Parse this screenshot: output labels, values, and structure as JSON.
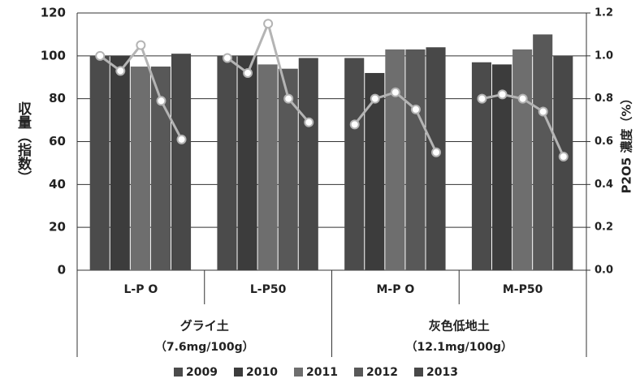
{
  "chart_data": {
    "type": "bar",
    "y_label": "収量（指数）",
    "y2_label": "P2O5 濃度（%）",
    "categories": [
      "L-P O",
      "L-P50",
      "M-P O",
      "M-P50"
    ],
    "groups": [
      {
        "label": "グライ土",
        "note": "（7.6mg/100g）"
      },
      {
        "label": "灰色低地土",
        "note": "（12.1mg/100g）"
      }
    ],
    "series": [
      {
        "name": "2009",
        "color": "#4b4b4b",
        "values": [
          100,
          100,
          99,
          97
        ]
      },
      {
        "name": "2010",
        "color": "#3c3c3c",
        "values": [
          100,
          100,
          92,
          96
        ]
      },
      {
        "name": "2011",
        "color": "#6e6e6e",
        "values": [
          95,
          96,
          103,
          103
        ]
      },
      {
        "name": "2012",
        "color": "#585858",
        "values": [
          95,
          94,
          103,
          110
        ]
      },
      {
        "name": "2013",
        "color": "#484848",
        "values": [
          101,
          99,
          104,
          100
        ]
      }
    ],
    "line": {
      "axis": "y2",
      "color": "#b4b4b4",
      "values": [
        [
          1.0,
          0.93,
          1.05,
          0.79,
          0.61
        ],
        [
          0.99,
          0.92,
          1.15,
          0.8,
          0.69
        ],
        [
          0.68,
          0.8,
          0.83,
          0.75,
          0.55
        ],
        [
          0.8,
          0.82,
          0.8,
          0.74,
          0.53
        ]
      ]
    },
    "ylim": [
      0,
      120
    ],
    "yticks": [
      0,
      20,
      40,
      60,
      80,
      100,
      120
    ],
    "y2lim": [
      0,
      1.2
    ],
    "y2ticks": [
      {
        "value": 0,
        "label": "0.0"
      },
      0.2,
      0.4,
      0.6,
      0.8,
      {
        "value": 1,
        "label": "1.0"
      },
      1.2
    ],
    "grid": true
  }
}
